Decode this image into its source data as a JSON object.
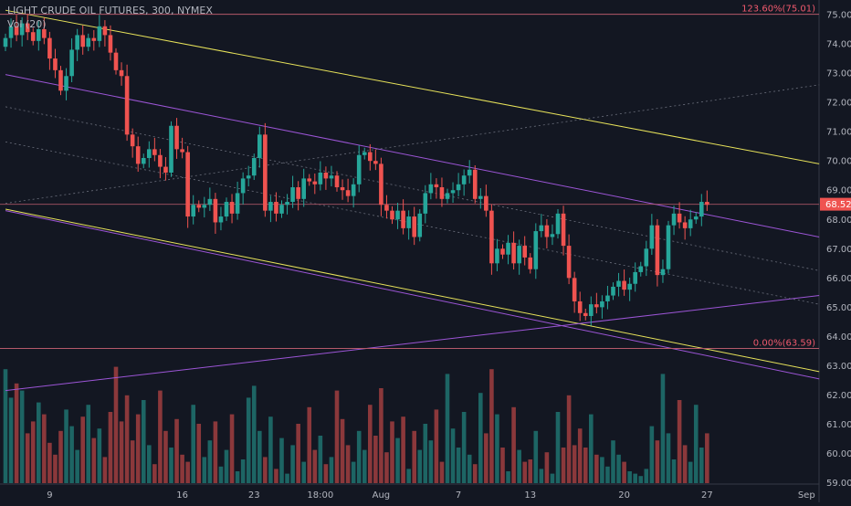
{
  "header": {
    "symbol": "LIGHT CRUDE OIL FUTURES",
    "interval": "300",
    "exchange": "NYMEX",
    "indicator": "Vol (20)"
  },
  "colors": {
    "background": "#131722",
    "up": "#26a69a",
    "down": "#ef5350",
    "channel_yellow": "#e8e35a",
    "channel_purple": "#9c55d6",
    "fib_line": "#b4596a",
    "fib_text": "#f0596d",
    "price_tag": "#ef5350",
    "axis_text": "#b2b5be"
  },
  "chart_data": {
    "type": "candlestick",
    "y_axis": {
      "ylim": [
        58.8,
        75.2
      ],
      "ticks": [
        "75.00",
        "74.00",
        "73.00",
        "72.00",
        "71.00",
        "70.00",
        "69.00",
        "68.00",
        "67.00",
        "66.00",
        "65.00",
        "64.00",
        "63.00",
        "62.00",
        "61.00",
        "60.00",
        "59.00"
      ]
    },
    "x_axis": {
      "ticks": [
        {
          "label": "9",
          "i": 8
        },
        {
          "label": "16",
          "i": 32
        },
        {
          "label": "23",
          "i": 45
        },
        {
          "label": "18:00",
          "i": 57
        },
        {
          "label": "Aug",
          "i": 68
        },
        {
          "label": "7",
          "i": 82
        },
        {
          "label": "13",
          "i": 95
        },
        {
          "label": "20",
          "i": 112
        },
        {
          "label": "27",
          "i": 127
        },
        {
          "label": "Sep",
          "i": 145
        }
      ]
    },
    "last_price": "68.52",
    "fib_levels": [
      {
        "label": "123.60%(75.01)",
        "value": 75.01
      },
      {
        "label": "0.00%(63.59)",
        "value": 63.59
      }
    ],
    "closes": [
      74.2,
      74.6,
      74.3,
      74.7,
      74.4,
      74.1,
      74.5,
      74.2,
      73.5,
      73.1,
      72.4,
      72.9,
      73.8,
      74.3,
      73.9,
      74.2,
      74.1,
      74.6,
      74.3,
      73.7,
      73.1,
      72.9,
      70.9,
      70.5,
      69.9,
      70.1,
      70.4,
      70.2,
      69.8,
      69.6,
      71.2,
      70.4,
      70.3,
      68.1,
      68.5,
      68.4,
      68.5,
      68.7,
      67.9,
      68.1,
      68.6,
      68.2,
      68.9,
      69.4,
      69.5,
      70.1,
      70.9,
      68.3,
      68.6,
      68.2,
      68.5,
      68.6,
      69.1,
      68.7,
      69.4,
      69.3,
      69.2,
      69.6,
      69.4,
      69.5,
      69.1,
      69.0,
      68.8,
      69.2,
      70.2,
      70.3,
      70.0,
      69.9,
      68.5,
      68.3,
      68.0,
      68.3,
      67.7,
      68.1,
      67.4,
      68.2,
      68.9,
      69.2,
      69.1,
      68.7,
      68.9,
      69.0,
      69.2,
      69.5,
      69.7,
      68.7,
      68.8,
      68.3,
      66.5,
      67.0,
      66.8,
      67.2,
      66.5,
      67.1,
      66.7,
      66.3,
      67.6,
      67.8,
      67.4,
      67.5,
      68.2,
      67.1,
      66.0,
      65.2,
      64.8,
      64.7,
      65.1,
      65.0,
      65.2,
      65.4,
      65.7,
      65.9,
      65.6,
      65.8,
      66.2,
      66.4,
      67.0,
      67.8,
      66.1,
      66.3,
      67.8,
      68.2,
      67.9,
      67.7,
      68.0,
      68.1,
      68.6,
      68.5
    ],
    "volumes": [
      4.8,
      3.6,
      4.2,
      3.9,
      2.1,
      2.6,
      3.4,
      2.9,
      1.7,
      1.2,
      2.2,
      3.1,
      2.4,
      1.4,
      2.8,
      3.3,
      1.9,
      2.3,
      1.1,
      3.0,
      4.9,
      2.6,
      3.7,
      1.8,
      2.9,
      3.5,
      1.6,
      0.8,
      3.9,
      2.2,
      1.5,
      2.7,
      1.2,
      0.9,
      3.3,
      2.5,
      1.1,
      1.8,
      2.6,
      0.7,
      1.4,
      2.9,
      0.5,
      1.0,
      3.6,
      4.1,
      2.2,
      1.1,
      2.8,
      0.6,
      1.9,
      0.4,
      1.6,
      2.5,
      0.9,
      3.2,
      1.4,
      2.0,
      0.8,
      1.1,
      3.9,
      2.7,
      1.6,
      0.9,
      2.2,
      1.4,
      3.3,
      2.0,
      4.0,
      1.3,
      2.6,
      1.9,
      2.8,
      0.6,
      2.2,
      1.4,
      2.5,
      1.8,
      3.1,
      0.9,
      4.6,
      2.3,
      1.5,
      3.0,
      1.2,
      0.8,
      3.8,
      2.1,
      4.8,
      2.9,
      1.5,
      0.5,
      3.2,
      1.4,
      0.9,
      1.0,
      2.2,
      0.6,
      1.3,
      0.4,
      3.0,
      1.5,
      3.7,
      1.6,
      2.3,
      1.5,
      2.9,
      1.2,
      1.1,
      0.7,
      1.8,
      1.2,
      0.9,
      0.5,
      0.4,
      0.3,
      0.6,
      2.4,
      1.8,
      4.6,
      2.1,
      1.0,
      3.5,
      1.6,
      0.9,
      3.3,
      1.5,
      2.1
    ]
  }
}
